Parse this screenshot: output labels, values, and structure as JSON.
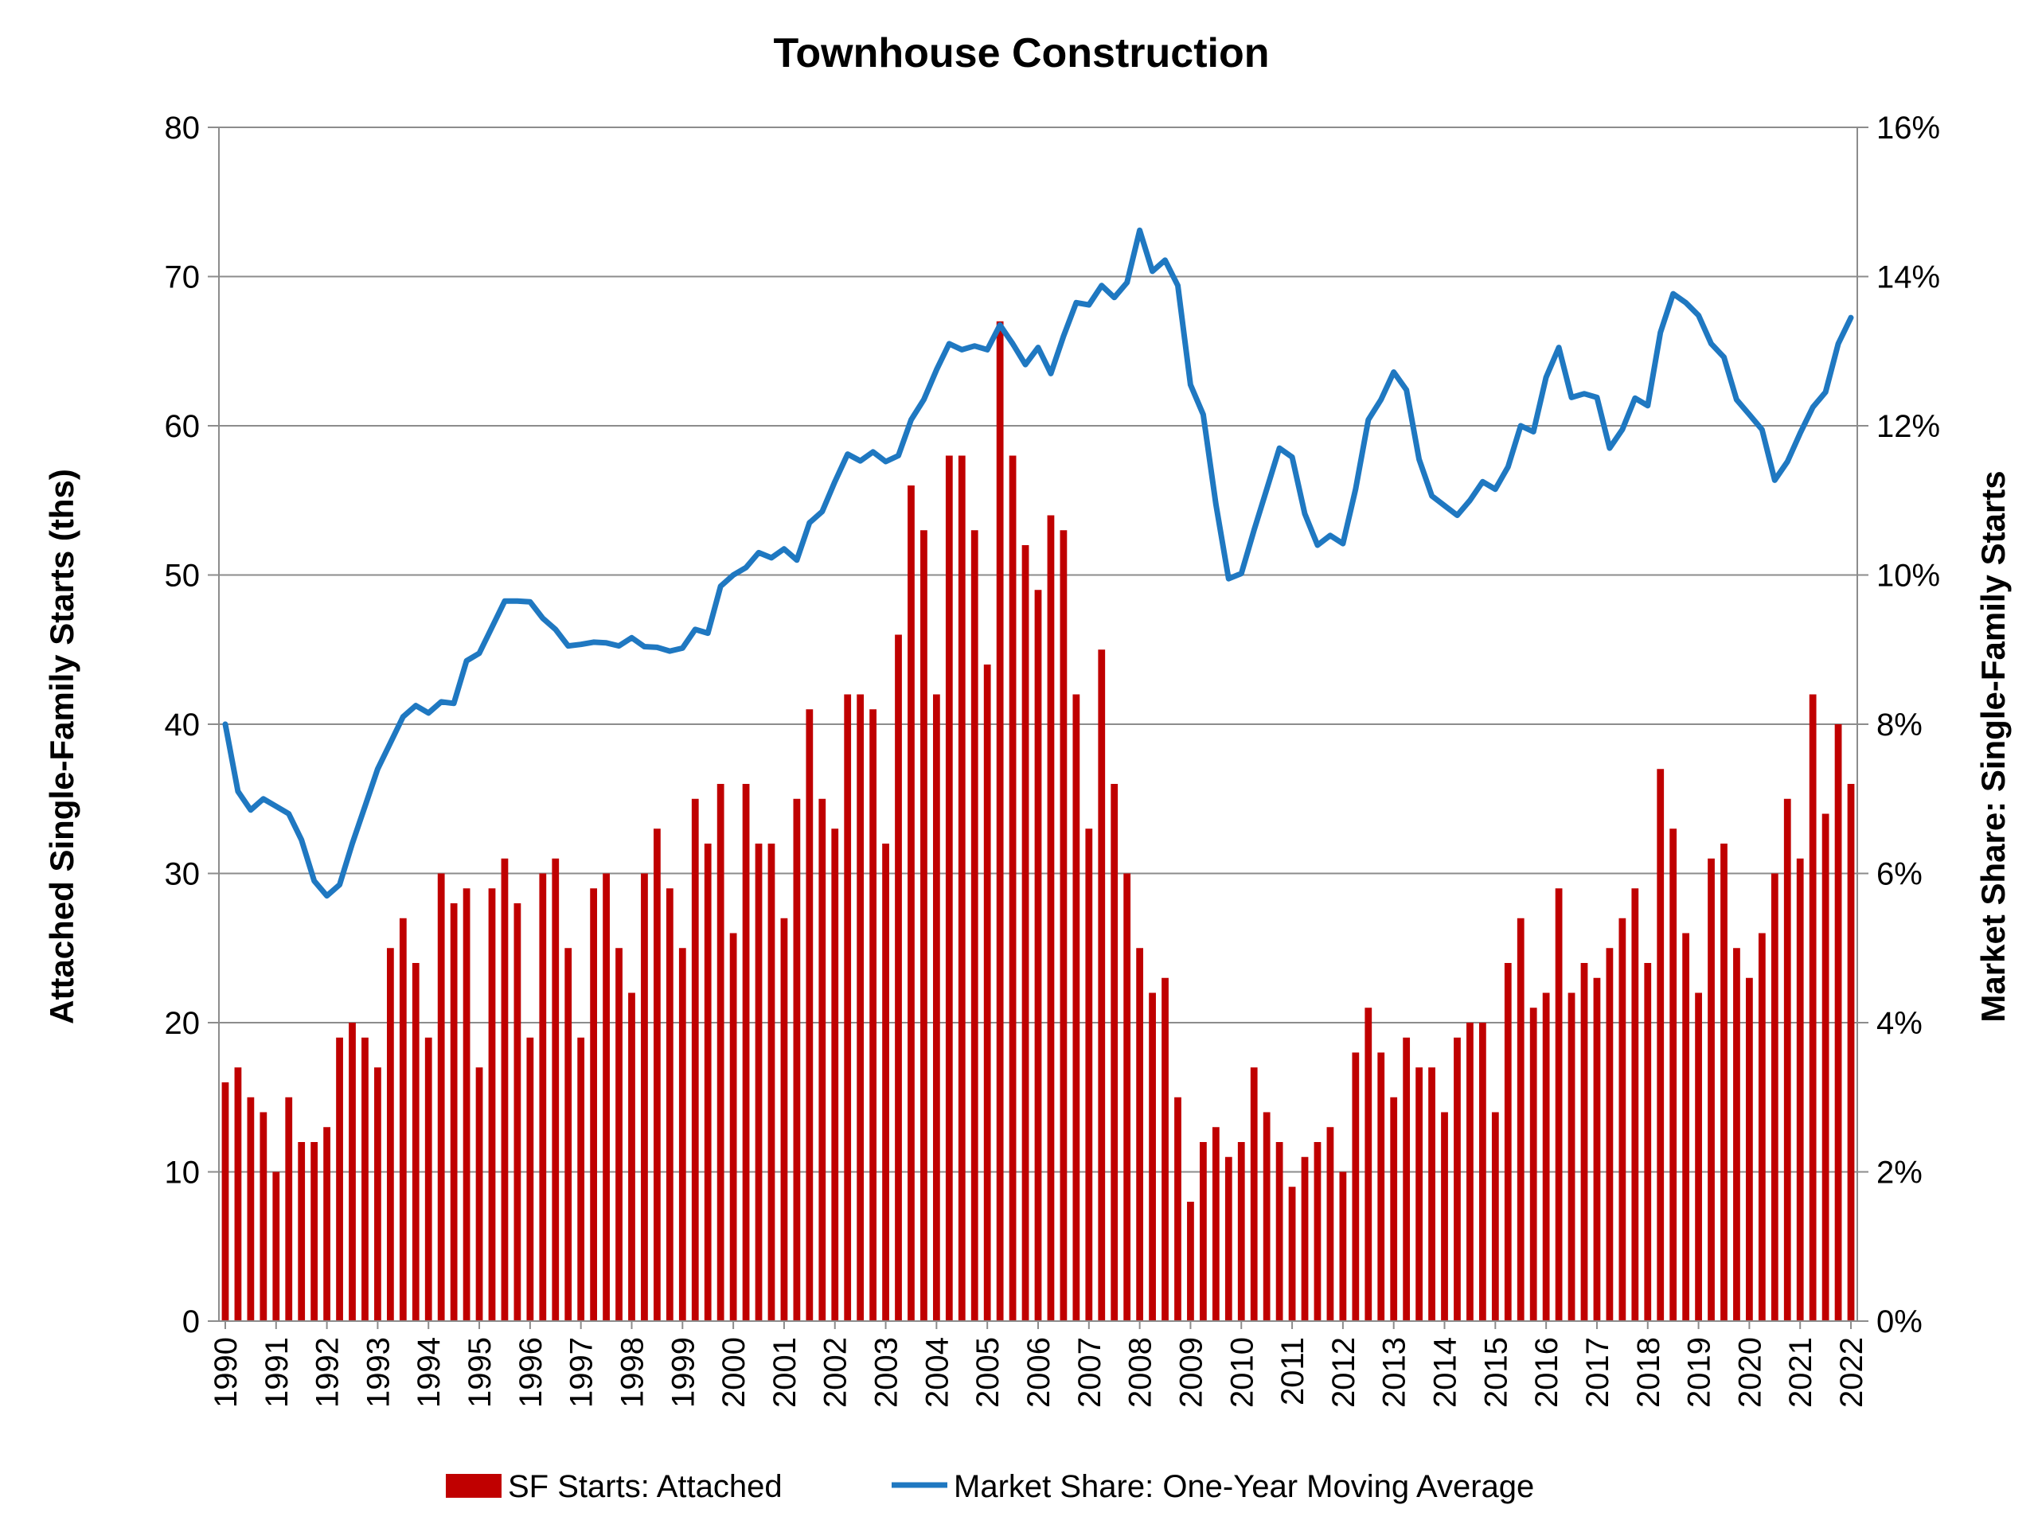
{
  "chart_data": {
    "type": "bar",
    "title": "Townhouse Construction",
    "xlabel": "",
    "ylabel": "Attached Single-Family Starts (ths)",
    "y2label": "Market Share: Single-Family Starts",
    "ylim": [
      0,
      80
    ],
    "y2lim": [
      0,
      16
    ],
    "yticks": [
      "0",
      "10",
      "20",
      "30",
      "40",
      "50",
      "60",
      "70",
      "80"
    ],
    "y2ticks": [
      "0%",
      "2%",
      "4%",
      "6%",
      "8%",
      "10%",
      "12%",
      "14%",
      "16%"
    ],
    "years": [
      "1990",
      "1991",
      "1992",
      "1993",
      "1994",
      "1995",
      "1996",
      "1997",
      "1998",
      "1999",
      "2000",
      "2001",
      "2002",
      "2003",
      "2004",
      "2005",
      "2006",
      "2007",
      "2008",
      "2009",
      "2010",
      "2011",
      "2012",
      "2013",
      "2014",
      "2015",
      "2016",
      "2017",
      "2018",
      "2019",
      "2020",
      "2021",
      "2022"
    ],
    "grid": true,
    "legend_position": "bottom",
    "series": [
      {
        "name": "SF Starts: Attached",
        "type": "bar",
        "axis": "left",
        "color": "#C00000",
        "frequency": "quarterly",
        "values": [
          16,
          17,
          15,
          14,
          10,
          15,
          12,
          12,
          13,
          19,
          20,
          19,
          17,
          25,
          27,
          24,
          19,
          30,
          28,
          29,
          17,
          29,
          31,
          28,
          19,
          30,
          31,
          25,
          19,
          29,
          30,
          25,
          22,
          30,
          33,
          29,
          25,
          35,
          32,
          36,
          26,
          36,
          32,
          32,
          27,
          35,
          41,
          35,
          33,
          42,
          42,
          41,
          32,
          46,
          56,
          53,
          42,
          58,
          58,
          53,
          44,
          67,
          58,
          52,
          49,
          54,
          53,
          42,
          33,
          45,
          36,
          30,
          25,
          22,
          23,
          15,
          8,
          12,
          13,
          11,
          12,
          17,
          14,
          12,
          9,
          11,
          12,
          13,
          10,
          18,
          21,
          18,
          15,
          19,
          17,
          17,
          14,
          19,
          20,
          20,
          14,
          24,
          27,
          21,
          22,
          29,
          22,
          24,
          23,
          25,
          27,
          29,
          24,
          37,
          33,
          26,
          22,
          31,
          32,
          25,
          23,
          26,
          30,
          35,
          31,
          42,
          34,
          40,
          36
        ]
      },
      {
        "name": "Market Share: One-Year Moving Average",
        "type": "line",
        "axis": "right",
        "color": "#1F78C1",
        "unit": "%",
        "values": [
          8.0,
          7.1,
          6.85,
          7.0,
          6.9,
          6.8,
          6.45,
          5.9,
          5.7,
          5.85,
          6.4,
          6.9,
          7.4,
          7.75,
          8.1,
          8.25,
          8.15,
          8.3,
          8.28,
          8.85,
          8.95,
          9.3,
          9.65,
          9.65,
          9.64,
          9.42,
          9.27,
          9.05,
          9.07,
          9.1,
          9.09,
          9.05,
          9.16,
          9.04,
          9.03,
          8.98,
          9.02,
          9.27,
          9.22,
          9.85,
          10.0,
          10.1,
          10.3,
          10.23,
          10.35,
          10.2,
          10.7,
          10.85,
          11.25,
          11.62,
          11.53,
          11.65,
          11.52,
          11.6,
          12.08,
          12.35,
          12.75,
          13.1,
          13.02,
          13.07,
          13.02,
          13.35,
          13.1,
          12.82,
          13.05,
          12.7,
          13.2,
          13.65,
          13.62,
          13.88,
          13.72,
          13.92,
          14.62,
          14.07,
          14.22,
          13.88,
          12.55,
          12.15,
          10.95,
          9.95,
          10.02,
          10.6,
          11.15,
          11.7,
          11.58,
          10.82,
          10.4,
          10.53,
          10.42,
          11.15,
          12.08,
          12.35,
          12.72,
          12.48,
          11.55,
          11.06,
          10.93,
          10.8,
          11.0,
          11.25,
          11.15,
          11.45,
          12.0,
          11.92,
          12.65,
          13.05,
          12.38,
          12.43,
          12.38,
          11.7,
          11.95,
          12.37,
          12.27,
          13.25,
          13.77,
          13.65,
          13.48,
          13.1,
          12.92,
          12.35,
          12.15,
          11.95,
          11.27,
          11.52,
          11.9,
          12.25,
          12.45,
          13.1,
          13.45
        ]
      }
    ]
  }
}
